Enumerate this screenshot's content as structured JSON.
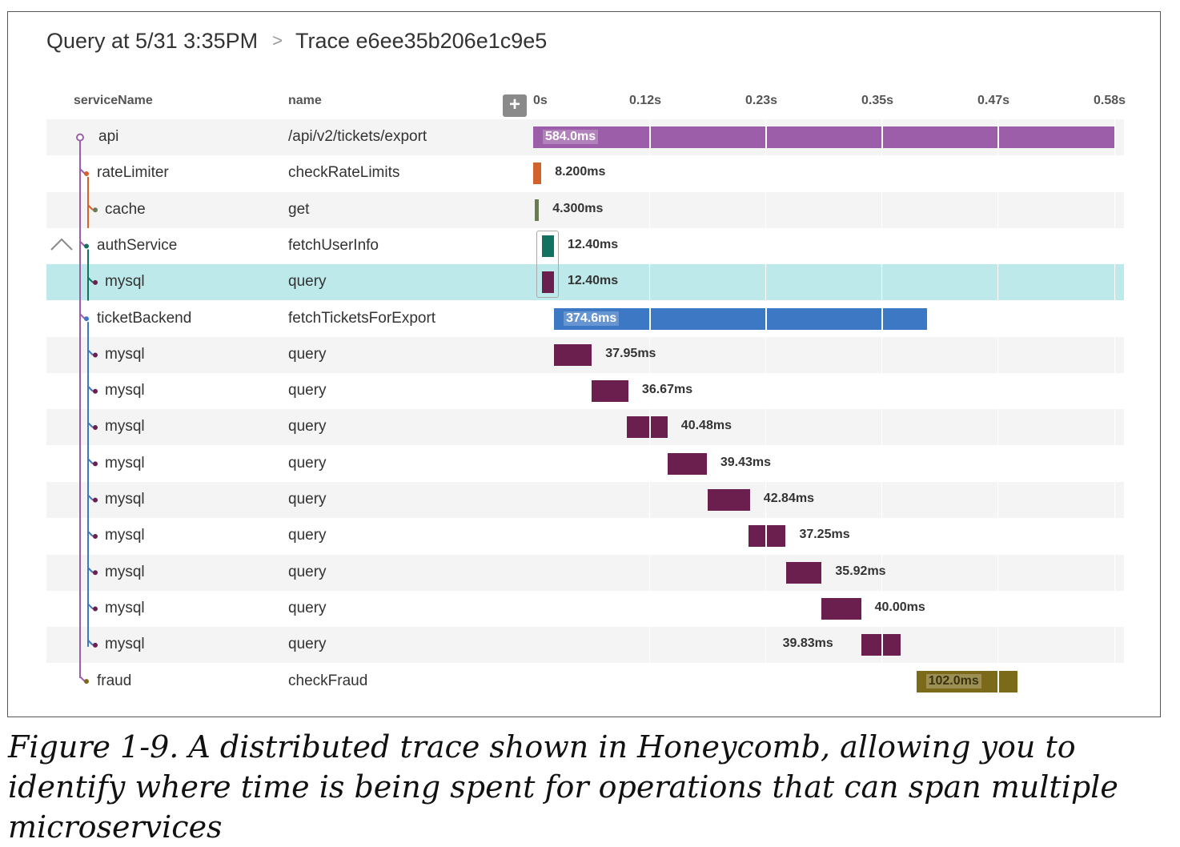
{
  "breadcrumb": {
    "query": "Query at 5/31 3:35PM",
    "trace": "Trace e6ee35b206e1c9e5"
  },
  "columns": {
    "service": "serviceName",
    "name": "name"
  },
  "timeline": {
    "ticks": [
      "0s",
      "0.12s",
      "0.23s",
      "0.35s",
      "0.47s",
      "0.58s"
    ],
    "max_ms": 584
  },
  "spans": [
    {
      "service": "api",
      "name": "/api/v2/tickets/export",
      "start_ms": 0,
      "duration_ms": 584.0,
      "label": "584.0ms",
      "color": "#9c5ea8",
      "depth": 0,
      "label_inside": true
    },
    {
      "service": "rateLimiter",
      "name": "checkRateLimits",
      "start_ms": 0,
      "duration_ms": 8.2,
      "label": "8.200ms",
      "color": "#d2622b",
      "depth": 1
    },
    {
      "service": "cache",
      "name": "get",
      "start_ms": 1.5,
      "duration_ms": 4.3,
      "label": "4.300ms",
      "color": "#6a7a55",
      "depth": 2
    },
    {
      "service": "authService",
      "name": "fetchUserInfo",
      "start_ms": 8.5,
      "duration_ms": 12.4,
      "label": "12.40ms",
      "color": "#127160",
      "depth": 1
    },
    {
      "service": "mysql",
      "name": "query",
      "start_ms": 8.5,
      "duration_ms": 12.4,
      "label": "12.40ms",
      "color": "#6b1f4f",
      "depth": 2,
      "selected": true
    },
    {
      "service": "ticketBackend",
      "name": "fetchTicketsForExport",
      "start_ms": 21,
      "duration_ms": 374.6,
      "label": "374.6ms",
      "color": "#3d78c4",
      "depth": 1,
      "label_inside": true
    },
    {
      "service": "mysql",
      "name": "query",
      "start_ms": 21,
      "duration_ms": 37.95,
      "label": "37.95ms",
      "color": "#6b1f4f",
      "depth": 2
    },
    {
      "service": "mysql",
      "name": "query",
      "start_ms": 59,
      "duration_ms": 36.67,
      "label": "36.67ms",
      "color": "#6b1f4f",
      "depth": 2
    },
    {
      "service": "mysql",
      "name": "query",
      "start_ms": 94.5,
      "duration_ms": 40.48,
      "label": "40.48ms",
      "color": "#6b1f4f",
      "depth": 2
    },
    {
      "service": "mysql",
      "name": "query",
      "start_ms": 135,
      "duration_ms": 39.43,
      "label": "39.43ms",
      "color": "#6b1f4f",
      "depth": 2
    },
    {
      "service": "mysql",
      "name": "query",
      "start_ms": 175,
      "duration_ms": 42.84,
      "label": "42.84ms",
      "color": "#6b1f4f",
      "depth": 2
    },
    {
      "service": "mysql",
      "name": "query",
      "start_ms": 216.5,
      "duration_ms": 37.25,
      "label": "37.25ms",
      "color": "#6b1f4f",
      "depth": 2
    },
    {
      "service": "mysql",
      "name": "query",
      "start_ms": 254,
      "duration_ms": 35.92,
      "label": "35.92ms",
      "color": "#6b1f4f",
      "depth": 2
    },
    {
      "service": "mysql",
      "name": "query",
      "start_ms": 289.5,
      "duration_ms": 40.0,
      "label": "40.00ms",
      "color": "#6b1f4f",
      "depth": 2
    },
    {
      "service": "mysql",
      "name": "query",
      "start_ms": 329.5,
      "duration_ms": 39.83,
      "label": "39.83ms",
      "color": "#6b1f4f",
      "depth": 2,
      "label_left": true
    },
    {
      "service": "fraud",
      "name": "checkFraud",
      "start_ms": 385,
      "duration_ms": 102.0,
      "label": "102.0ms",
      "color": "#7a6a1a",
      "depth": 1,
      "label_inside": true
    }
  ],
  "caption": "Figure 1-9. A distributed trace shown in Honeycomb, allowing you to identify where time is being spent for operations that can span multiple microservices"
}
